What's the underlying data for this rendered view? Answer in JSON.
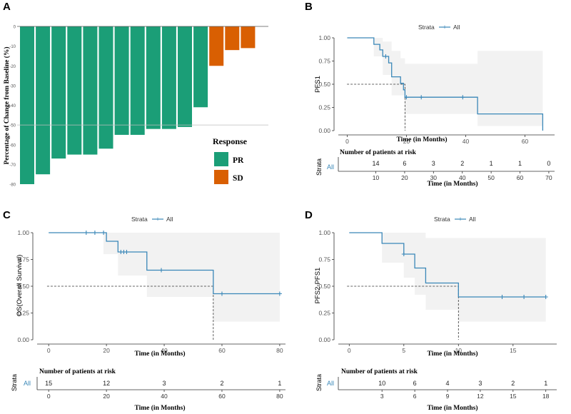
{
  "colors": {
    "pr": "#1b9e77",
    "sd": "#d95f02",
    "km_line": "#3a87b8",
    "ci_fill": "#f2f2f2",
    "axis": "#333333",
    "tick_text": "#555555",
    "all_label": "#3a87b8"
  },
  "strata_label": "Strata",
  "all_label": "All",
  "chart_data": [
    {
      "id": "waterfall",
      "panel": "A",
      "type": "bar",
      "title": "",
      "ylabel": "Percentage of Change from Baseline (%)",
      "ylim": [
        -80,
        0
      ],
      "yticks": [
        0,
        -10,
        -20,
        -30,
        -40,
        -50,
        -60,
        -70,
        -80
      ],
      "reference_line": -50,
      "series": [
        {
          "name": "PR",
          "values": [
            -80,
            -75,
            -67,
            -65,
            -65,
            -62,
            -55,
            -55,
            -52,
            -52,
            -51,
            -41
          ]
        },
        {
          "name": "SD",
          "values": [
            -20,
            -12,
            -11
          ]
        }
      ],
      "legend": {
        "title": "Response",
        "entries": [
          "PR",
          "SD"
        ],
        "placement": "bottom-right"
      }
    },
    {
      "id": "pfs1",
      "panel": "B",
      "type": "line",
      "xlabel": "Time (in Months)",
      "ylabel": "PFS1",
      "xlim": [
        -3,
        70
      ],
      "ylim": [
        0,
        1
      ],
      "xticks": [
        0,
        20,
        40,
        60
      ],
      "yticks": [
        "0.00",
        "0.25",
        "0.50",
        "0.75",
        "1.00"
      ],
      "series": [
        {
          "name": "All",
          "step": [
            [
              0,
              1.0
            ],
            [
              9,
              1.0
            ],
            [
              9,
              0.93
            ],
            [
              11,
              0.93
            ],
            [
              11,
              0.87
            ],
            [
              12,
              0.87
            ],
            [
              12,
              0.8
            ],
            [
              14,
              0.8
            ],
            [
              14,
              0.73
            ],
            [
              15,
              0.73
            ],
            [
              15,
              0.58
            ],
            [
              18,
              0.58
            ],
            [
              18,
              0.51
            ],
            [
              19,
              0.51
            ],
            [
              19,
              0.44
            ],
            [
              19.5,
              0.44
            ],
            [
              19.5,
              0.36
            ],
            [
              44,
              0.36
            ],
            [
              44,
              0.18
            ],
            [
              66,
              0.18
            ],
            [
              66,
              0.0
            ]
          ],
          "ci_upper": [
            [
              0,
              1.0
            ],
            [
              9,
              1.0
            ],
            [
              9,
              1.0
            ],
            [
              12,
              1.0
            ],
            [
              12,
              0.96
            ],
            [
              15,
              0.96
            ],
            [
              15,
              0.86
            ],
            [
              18,
              0.86
            ],
            [
              18,
              0.78
            ],
            [
              19.5,
              0.78
            ],
            [
              19.5,
              0.72
            ],
            [
              44,
              0.72
            ],
            [
              44,
              0.86
            ],
            [
              66,
              0.86
            ]
          ],
          "ci_lower": [
            [
              0,
              1.0
            ],
            [
              9,
              1.0
            ],
            [
              9,
              0.8
            ],
            [
              12,
              0.8
            ],
            [
              12,
              0.6
            ],
            [
              15,
              0.6
            ],
            [
              15,
              0.38
            ],
            [
              19.5,
              0.38
            ],
            [
              19.5,
              0.18
            ],
            [
              44,
              0.18
            ],
            [
              44,
              0.05
            ],
            [
              66,
              0.05
            ]
          ],
          "censored": [
            [
              13,
              0.8
            ],
            [
              20,
              0.36
            ],
            [
              25,
              0.36
            ],
            [
              39,
              0.36
            ]
          ]
        }
      ],
      "median_line": {
        "x": 19.5,
        "y": 0.5
      },
      "risk_table": {
        "title": "Number of patients at risk",
        "counts": [
          "14",
          "6",
          "3",
          "2",
          "1",
          "1",
          "0"
        ],
        "ticks": [
          "10",
          "20",
          "30",
          "40",
          "50",
          "60",
          "70"
        ],
        "tick_values": [
          10,
          20,
          30,
          40,
          50,
          60,
          70
        ],
        "xlim": [
          -3,
          72
        ],
        "xlabel": "Time (in Months)"
      }
    },
    {
      "id": "os",
      "panel": "C",
      "type": "line",
      "xlabel": "Time (in Months)",
      "ylabel": "OS(Overall Survival)",
      "xlim": [
        -4,
        82
      ],
      "ylim": [
        0,
        1
      ],
      "xticks": [
        0,
        20,
        40,
        60,
        80
      ],
      "yticks": [
        "0.00",
        "0.25",
        "0.50",
        "0.75",
        "1.00"
      ],
      "series": [
        {
          "name": "All",
          "step": [
            [
              0,
              1.0
            ],
            [
              20,
              1.0
            ],
            [
              20,
              0.92
            ],
            [
              24,
              0.92
            ],
            [
              24,
              0.82
            ],
            [
              34,
              0.82
            ],
            [
              34,
              0.65
            ],
            [
              57,
              0.65
            ],
            [
              57,
              0.43
            ],
            [
              80,
              0.43
            ]
          ],
          "ci_upper": [
            [
              0,
              1.0
            ],
            [
              20,
              1.0
            ],
            [
              20,
              1.0
            ],
            [
              34,
              1.0
            ],
            [
              34,
              1.0
            ],
            [
              57,
              1.0
            ],
            [
              57,
              1.0
            ],
            [
              80,
              1.0
            ]
          ],
          "ci_lower": [
            [
              0,
              1.0
            ],
            [
              19,
              1.0
            ],
            [
              19,
              0.8
            ],
            [
              24,
              0.8
            ],
            [
              24,
              0.6
            ],
            [
              34,
              0.6
            ],
            [
              34,
              0.4
            ],
            [
              57,
              0.4
            ],
            [
              57,
              0.17
            ],
            [
              80,
              0.17
            ]
          ],
          "censored": [
            [
              13,
              1.0
            ],
            [
              16,
              1.0
            ],
            [
              19,
              1.0
            ],
            [
              25,
              0.82
            ],
            [
              26,
              0.82
            ],
            [
              27,
              0.82
            ],
            [
              39,
              0.65
            ],
            [
              60,
              0.43
            ],
            [
              80,
              0.43
            ]
          ]
        }
      ],
      "median_line": {
        "x": 57,
        "y": 0.5
      },
      "risk_table": {
        "title": "Number of patients at risk",
        "counts": [
          "15",
          "12",
          "3",
          "2",
          "1"
        ],
        "ticks": [
          "0",
          "20",
          "40",
          "60",
          "80"
        ],
        "tick_values": [
          0,
          20,
          40,
          60,
          80
        ],
        "xlim": [
          -4,
          82
        ],
        "xlabel": "Time (in Months)"
      }
    },
    {
      "id": "pfs2",
      "panel": "D",
      "type": "line",
      "xlabel": "Time (in Months)",
      "ylabel": "PFS2-PFS1",
      "xlim": [
        -1,
        19
      ],
      "ylim": [
        0,
        1
      ],
      "xticks": [
        0,
        5,
        10,
        15
      ],
      "yticks": [
        "0.00",
        "0.25",
        "0.50",
        "0.75",
        "1.00"
      ],
      "series": [
        {
          "name": "All",
          "step": [
            [
              0,
              1.0
            ],
            [
              3,
              1.0
            ],
            [
              3,
              0.9
            ],
            [
              5,
              0.9
            ],
            [
              5,
              0.8
            ],
            [
              6,
              0.8
            ],
            [
              6,
              0.67
            ],
            [
              7,
              0.67
            ],
            [
              7,
              0.53
            ],
            [
              10,
              0.53
            ],
            [
              10,
              0.4
            ],
            [
              18,
              0.4
            ]
          ],
          "ci_upper": [
            [
              0,
              1.0
            ],
            [
              3,
              1.0
            ],
            [
              5,
              1.0
            ],
            [
              5,
              1.0
            ],
            [
              7,
              1.0
            ],
            [
              7,
              0.95
            ],
            [
              18,
              0.95
            ]
          ],
          "ci_lower": [
            [
              0,
              1.0
            ],
            [
              3,
              1.0
            ],
            [
              3,
              0.72
            ],
            [
              5,
              0.72
            ],
            [
              5,
              0.58
            ],
            [
              6,
              0.58
            ],
            [
              6,
              0.42
            ],
            [
              7,
              0.42
            ],
            [
              7,
              0.28
            ],
            [
              10,
              0.28
            ],
            [
              10,
              0.17
            ],
            [
              18,
              0.17
            ]
          ],
          "censored": [
            [
              5,
              0.8
            ],
            [
              14,
              0.4
            ],
            [
              16,
              0.4
            ],
            [
              18,
              0.4
            ]
          ]
        }
      ],
      "median_line": {
        "x": 10,
        "y": 0.5
      },
      "risk_table": {
        "title": "Number of patients at risk",
        "counts": [
          "10",
          "6",
          "4",
          "3",
          "2",
          "1"
        ],
        "ticks": [
          "3",
          "6",
          "9",
          "12",
          "15",
          "18"
        ],
        "tick_values": [
          3,
          6,
          9,
          12,
          15,
          18
        ],
        "xlim": [
          -1,
          19
        ],
        "xlabel": "Time (in Months)"
      }
    }
  ]
}
